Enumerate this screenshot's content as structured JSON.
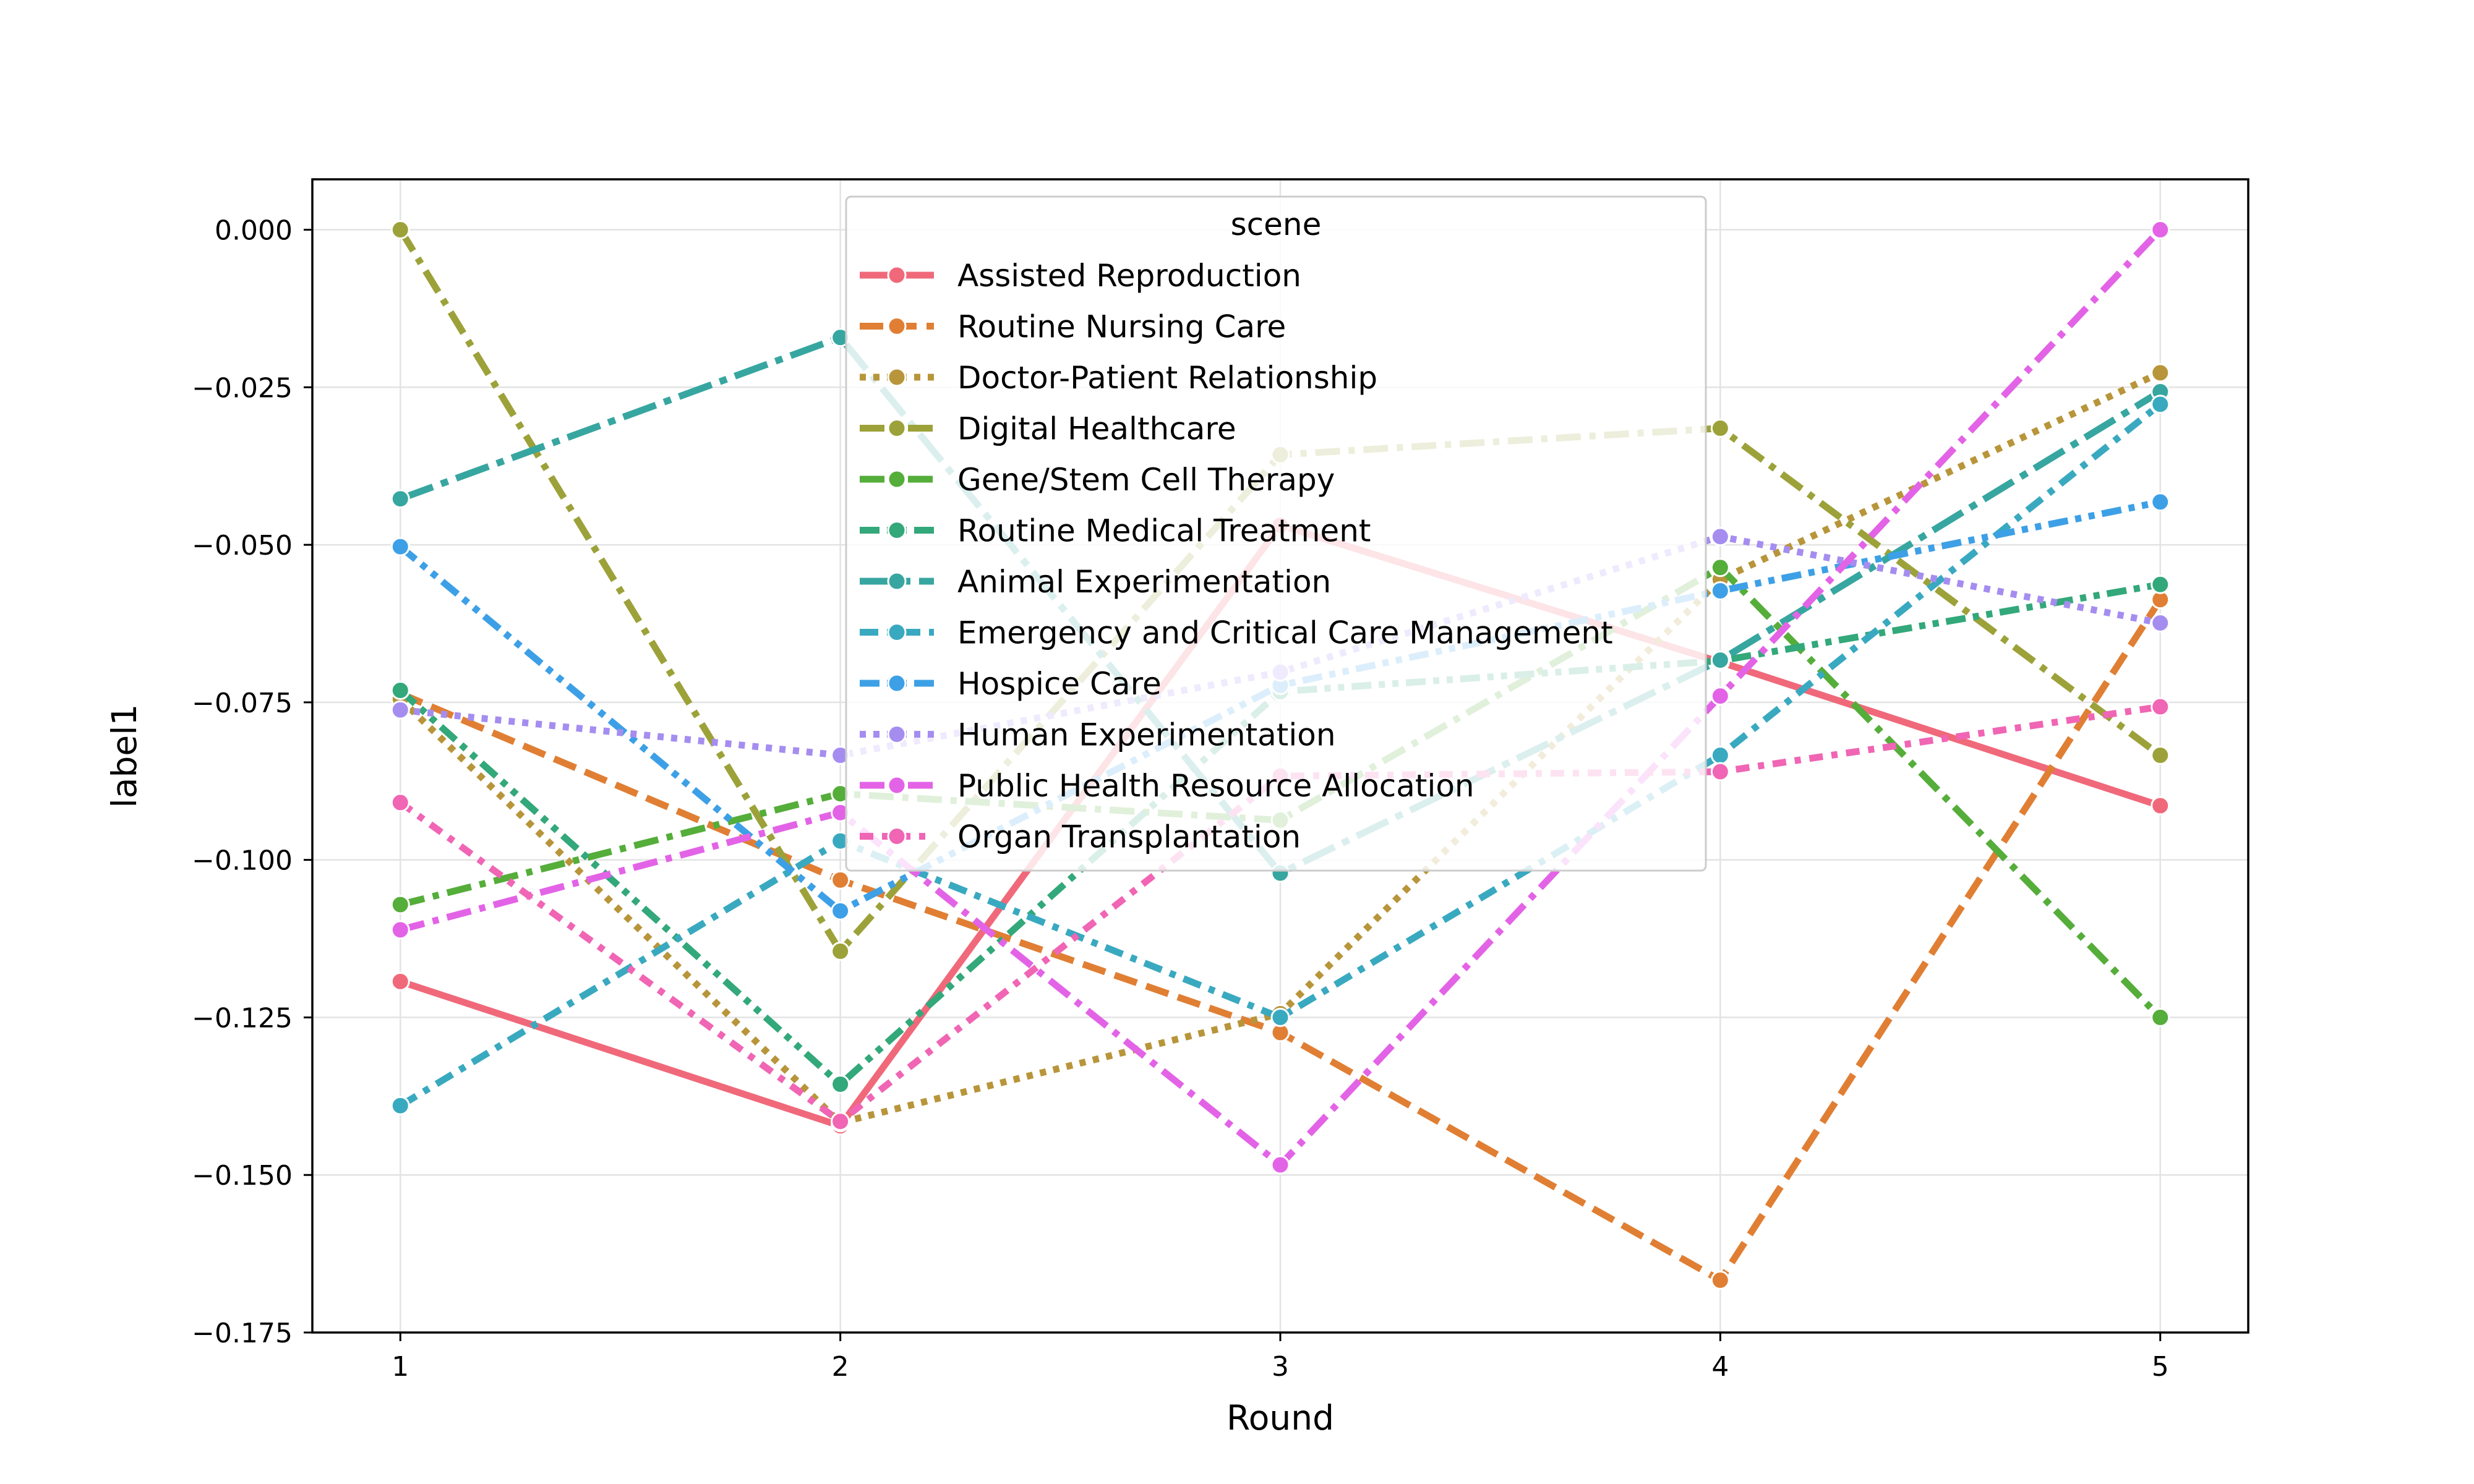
{
  "chart_data": {
    "type": "line",
    "title": "",
    "xlabel": "Round",
    "ylabel": "label1",
    "x": [
      1,
      2,
      3,
      4,
      5
    ],
    "xlim": [
      0.8,
      5.2
    ],
    "ylim": [
      -0.175,
      0.008
    ],
    "xticks": [
      "1",
      "2",
      "3",
      "4",
      "5"
    ],
    "yticks": [
      0.0,
      -0.025,
      -0.05,
      -0.075,
      -0.1,
      -0.125,
      -0.15,
      -0.175
    ],
    "ytick_labels": [
      "0.000",
      "−0.025",
      "−0.050",
      "−0.075",
      "−0.100",
      "−0.125",
      "−0.150",
      "−0.175"
    ],
    "grid": true,
    "legend_title": "scene",
    "legend_position": "top-center",
    "series": [
      {
        "name": "Assisted Reproduction",
        "color": "#f0697a",
        "dash": "solid",
        "values": [
          -0.1193,
          -0.1422,
          -0.0469,
          -0.0686,
          -0.0914
        ]
      },
      {
        "name": "Routine Nursing Care",
        "color": "#e07f34",
        "dash": "dashed",
        "values": [
          -0.0736,
          -0.1032,
          -0.1274,
          -0.1667,
          -0.0587
        ]
      },
      {
        "name": "Doctor-Patient Relationship",
        "color": "#b8953a",
        "dash": "dotted",
        "values": [
          -0.0745,
          -0.1417,
          -0.1244,
          -0.0555,
          -0.0227
        ]
      },
      {
        "name": "Digital Healthcare",
        "color": "#9ca239",
        "dash": "dashdot",
        "values": [
          0.0,
          -0.1145,
          -0.0357,
          -0.0315,
          -0.0834
        ]
      },
      {
        "name": "Gene/Stem Cell Therapy",
        "color": "#55ad3a",
        "dash": "dashdot",
        "values": [
          -0.1071,
          -0.0895,
          -0.0937,
          -0.0536,
          -0.125
        ]
      },
      {
        "name": "Routine Medical Treatment",
        "color": "#33a87a",
        "dash": "dashdotdot",
        "values": [
          -0.0731,
          -0.1356,
          -0.0733,
          -0.0684,
          -0.0563
        ]
      },
      {
        "name": "Animal Experimentation",
        "color": "#37a6a0",
        "dash": "longdashdot",
        "values": [
          -0.0427,
          -0.0171,
          -0.1021,
          -0.0683,
          -0.0257
        ]
      },
      {
        "name": "Emergency and Critical Care Management",
        "color": "#39a9c0",
        "dash": "dashdot2",
        "values": [
          -0.139,
          -0.097,
          -0.125,
          -0.0834,
          -0.0277
        ]
      },
      {
        "name": "Hospice Care",
        "color": "#3da0e6",
        "dash": "dashdotdot",
        "values": [
          -0.0503,
          -0.1081,
          -0.0723,
          -0.0573,
          -0.0432
        ]
      },
      {
        "name": "Human Experimentation",
        "color": "#a58df0",
        "dash": "dotted",
        "values": [
          -0.0762,
          -0.0834,
          -0.0702,
          -0.0487,
          -0.0624
        ]
      },
      {
        "name": "Public Health Resource Allocation",
        "color": "#e363e6",
        "dash": "dashdot",
        "values": [
          -0.1111,
          -0.0925,
          -0.1484,
          -0.074,
          0.0
        ]
      },
      {
        "name": "Organ Transplantation",
        "color": "#f065b4",
        "dash": "dashdot3",
        "values": [
          -0.0909,
          -0.1415,
          -0.0867,
          -0.086,
          -0.0757
        ]
      }
    ]
  }
}
